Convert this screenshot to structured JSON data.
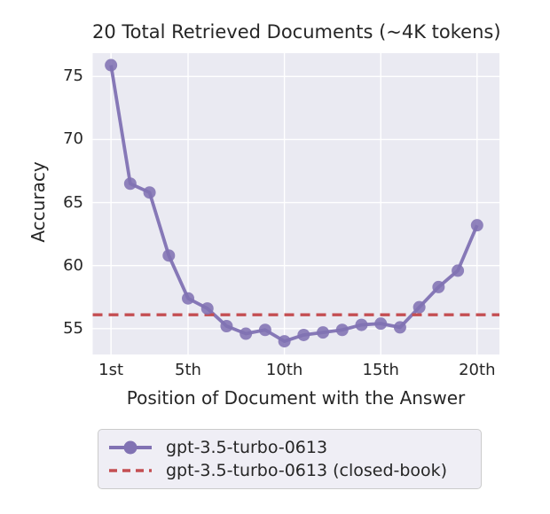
{
  "chart_data": {
    "type": "line",
    "title": "20 Total Retrieved Documents (~4K tokens)",
    "xlabel": "Position of Document with the Answer",
    "ylabel": "Accuracy",
    "x": [
      1,
      2,
      3,
      4,
      5,
      6,
      7,
      8,
      9,
      10,
      11,
      12,
      13,
      14,
      15,
      16,
      17,
      18,
      19,
      20
    ],
    "series": [
      {
        "name": "gpt-3.5-turbo-0613",
        "style": "solid-with-circle-markers",
        "color": "#8172b3",
        "values": [
          75.9,
          66.5,
          65.8,
          60.8,
          57.4,
          56.6,
          55.2,
          54.6,
          54.9,
          54.0,
          54.5,
          54.7,
          54.9,
          55.3,
          55.4,
          55.1,
          56.7,
          58.3,
          59.6,
          63.2
        ]
      },
      {
        "name": "gpt-3.5-turbo-0613 (closed-book)",
        "style": "dashed-horizontal-line",
        "color": "#c44e52",
        "value": 56.1
      }
    ],
    "x_ticks": {
      "positions": [
        1,
        5,
        10,
        15,
        20
      ],
      "labels": [
        "1st",
        "5th",
        "10th",
        "15th",
        "20th"
      ]
    },
    "y_ticks": [
      55,
      60,
      65,
      70,
      75
    ],
    "xlim": [
      0.05,
      21.16
    ],
    "ylim": [
      52.95,
      76.85
    ],
    "plot_background": "#eaeaf2",
    "grid_color": "#ffffff",
    "grid": "on",
    "legend_position": "bottom-left-below-axes"
  }
}
